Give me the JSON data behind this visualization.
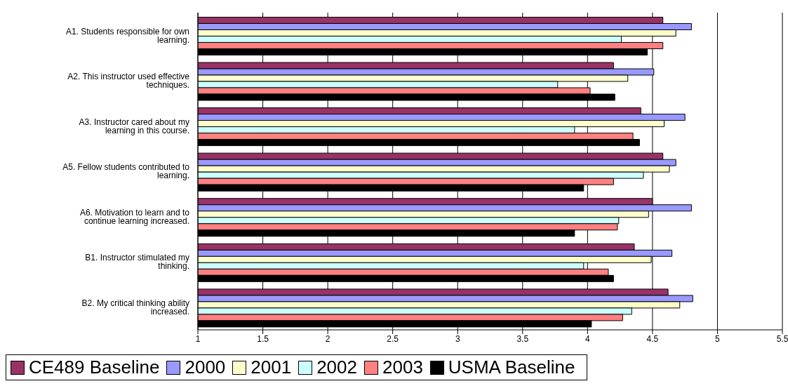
{
  "chart_data": {
    "type": "bar",
    "orientation": "horizontal",
    "categories": [
      "A1. Students responsible for own learning.",
      "A2. This instructor used effective techniques.",
      "A3. Instructor cared about my learning in this course.",
      "A5. Fellow students contributed to learning.",
      "A6. Motivation to learn and to continue learning increased.",
      "B1. Instructor stimulated my thinking.",
      "B2. My critical thinking ability increased."
    ],
    "series": [
      {
        "name": "CE489 Baseline",
        "color": "#993366",
        "values": [
          4.58,
          4.2,
          4.41,
          4.58,
          4.5,
          4.36,
          4.62
        ]
      },
      {
        "name": "2000",
        "color": "#9999ff",
        "values": [
          4.8,
          4.51,
          4.75,
          4.68,
          4.8,
          4.65,
          4.81
        ]
      },
      {
        "name": "2001",
        "color": "#ffffcc",
        "values": [
          4.68,
          4.31,
          4.59,
          4.63,
          4.47,
          4.49,
          4.71
        ]
      },
      {
        "name": "2002",
        "color": "#ccffff",
        "values": [
          4.26,
          3.77,
          3.9,
          4.43,
          4.24,
          3.97,
          4.34
        ]
      },
      {
        "name": "2003",
        "color": "#ff8080",
        "values": [
          4.58,
          4.02,
          4.35,
          4.2,
          4.23,
          4.16,
          4.27
        ]
      },
      {
        "name": "USMA Baseline",
        "color": "#000000",
        "values": [
          4.46,
          4.21,
          4.4,
          3.97,
          3.9,
          4.2,
          4.03
        ]
      }
    ],
    "xlim": [
      1,
      5.5
    ],
    "xticks": [
      1,
      1.5,
      2,
      2.5,
      3,
      3.5,
      4,
      4.5,
      5,
      5.5
    ],
    "grid": "x",
    "legend": "bottom left"
  }
}
